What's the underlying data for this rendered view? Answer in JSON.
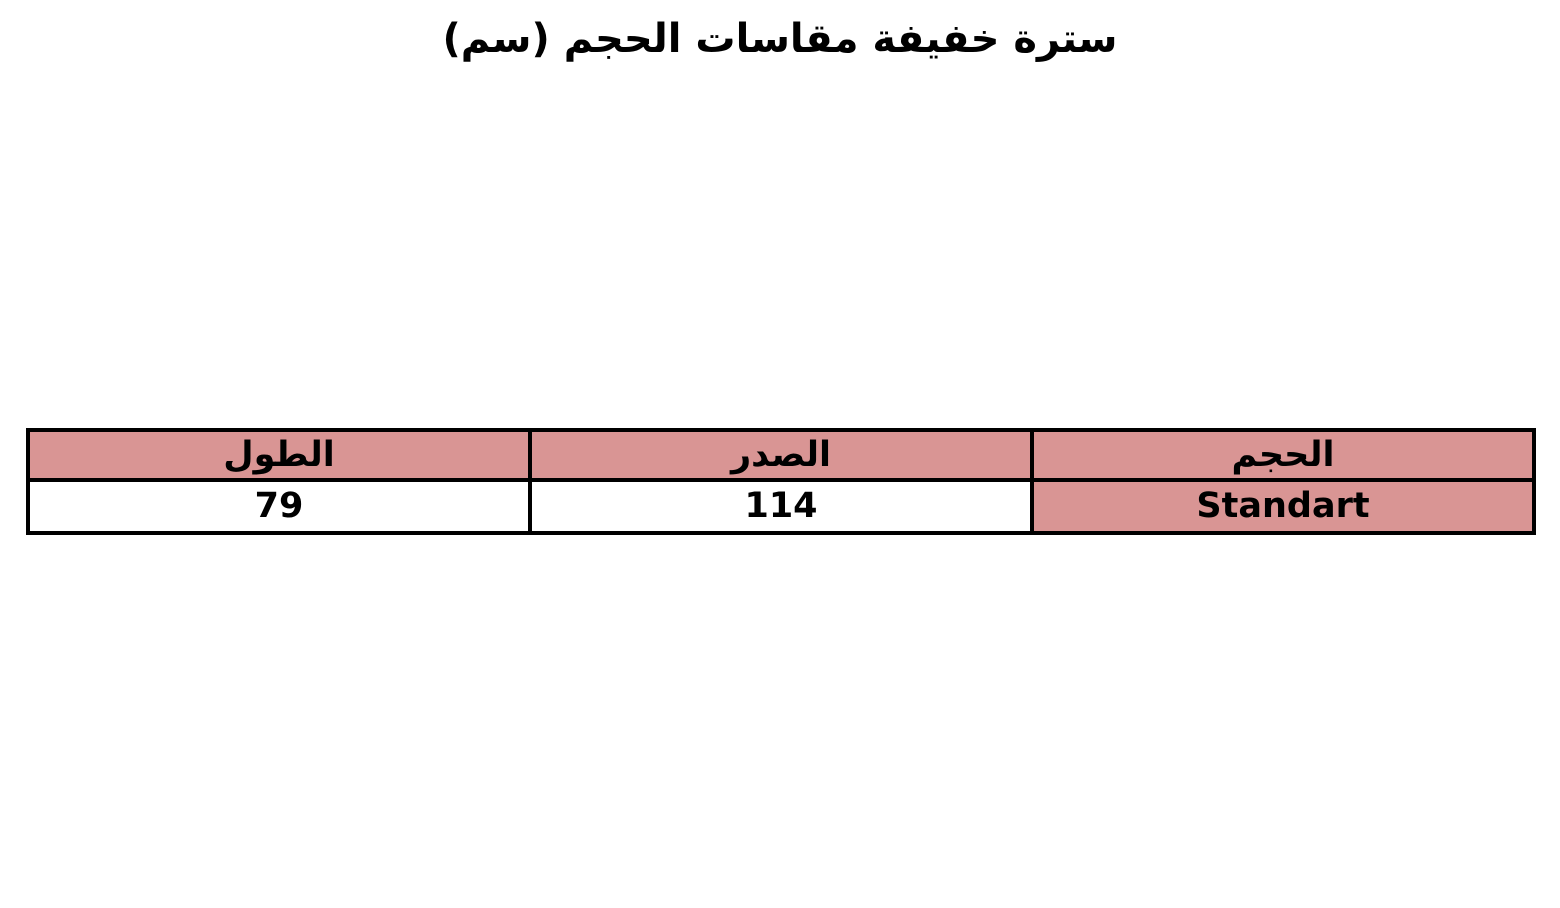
{
  "page": {
    "background": "#ffffff",
    "title": "سترة خفيفة مقاسات الحجم (سم)"
  },
  "colors": {
    "header_bg": "#d99594",
    "highlight_cell_bg": "#d99594",
    "border": "#000000",
    "text": "#000000",
    "page_bg": "#ffffff"
  },
  "chart_data": {
    "type": "table",
    "title": "سترة خفيفة مقاسات الحجم (سم)",
    "direction": "rtl",
    "columns": [
      "الحجم",
      "الصدر",
      "الطول"
    ],
    "rows": [
      [
        "Standart",
        "114",
        "79"
      ]
    ],
    "layout": {
      "header_fill": "#d99594",
      "highlighted_body_cells": [
        {
          "row": 0,
          "column": "الحجم",
          "fill": "#d99594"
        }
      ],
      "border_color": "#000000",
      "grid": "on"
    }
  },
  "table": {
    "headers": {
      "size": "الحجم",
      "chest": "الصدر",
      "length": "الطول"
    },
    "row": {
      "size": "Standart",
      "chest": "114",
      "length": "79"
    }
  }
}
